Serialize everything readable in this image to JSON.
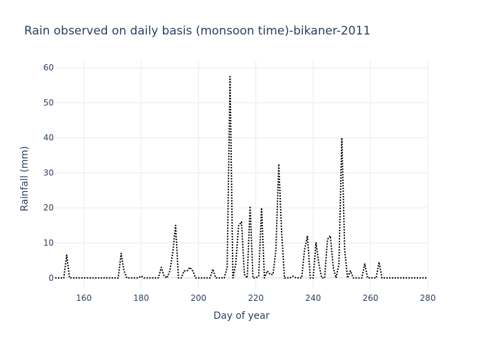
{
  "chart_data": {
    "type": "line",
    "title": "Rain observed on daily basis (monsoon time)-bikaner-2011",
    "xlabel": "Day of year",
    "ylabel": "Rainfall (mm)",
    "xlim": [
      150,
      280
    ],
    "ylim": [
      -3,
      62
    ],
    "x_ticks": [
      160,
      180,
      200,
      220,
      240,
      260,
      280
    ],
    "y_ticks": [
      0,
      10,
      20,
      30,
      40,
      50,
      60
    ],
    "grid": true,
    "line_style": "dotted",
    "line_color": "#000000",
    "series": [
      {
        "x": [
          150,
          151,
          152,
          153,
          154,
          155,
          156,
          157,
          158,
          159,
          160,
          161,
          162,
          163,
          164,
          165,
          166,
          167,
          168,
          169,
          170,
          171,
          172,
          173,
          174,
          175,
          176,
          177,
          178,
          179,
          180,
          181,
          182,
          183,
          184,
          185,
          186,
          187,
          188,
          189,
          190,
          191,
          192,
          193,
          194,
          195,
          196,
          197,
          198,
          199,
          200,
          201,
          202,
          203,
          204,
          205,
          206,
          207,
          208,
          209,
          210,
          211,
          212,
          213,
          214,
          215,
          216,
          217,
          218,
          219,
          220,
          221,
          222,
          223,
          224,
          225,
          226,
          227,
          228,
          229,
          230,
          231,
          232,
          233,
          234,
          235,
          236,
          237,
          238,
          239,
          240,
          241,
          242,
          243,
          244,
          245,
          246,
          247,
          248,
          249,
          250,
          251,
          252,
          253,
          254,
          255,
          256,
          257,
          258,
          259,
          260,
          261,
          262,
          263,
          264,
          265,
          266,
          267,
          268,
          269,
          270,
          271,
          272,
          273,
          274,
          275,
          276,
          277,
          278,
          279,
          280
        ],
        "values": [
          0,
          0,
          0,
          0,
          6.5,
          0,
          0,
          0,
          0,
          0,
          0,
          0,
          0,
          0,
          0,
          0,
          0,
          0,
          0,
          0,
          0,
          0,
          0,
          7,
          2,
          0,
          0,
          0,
          0,
          0,
          0.5,
          0,
          0,
          0,
          0,
          0,
          0,
          3,
          0.5,
          0,
          2,
          7,
          15,
          0,
          0,
          2,
          2,
          3,
          2,
          0,
          0,
          0,
          0,
          0,
          0,
          2.5,
          0,
          0,
          0,
          0,
          3,
          57.5,
          0,
          4,
          15,
          16,
          1,
          0,
          20.5,
          0,
          0,
          0.5,
          20,
          0,
          2,
          1,
          1,
          8,
          32.5,
          13,
          0,
          0,
          0,
          0.5,
          0,
          0,
          0,
          8,
          12,
          0,
          0,
          10,
          4,
          0,
          0,
          11,
          12,
          3,
          0,
          4,
          40,
          8,
          0,
          2,
          0,
          0,
          0,
          0,
          4,
          0,
          0,
          0,
          0,
          4.5,
          0,
          0,
          0,
          0,
          0,
          0,
          0,
          0,
          0,
          0,
          0,
          0,
          0,
          0,
          0,
          0,
          0
        ]
      }
    ]
  }
}
